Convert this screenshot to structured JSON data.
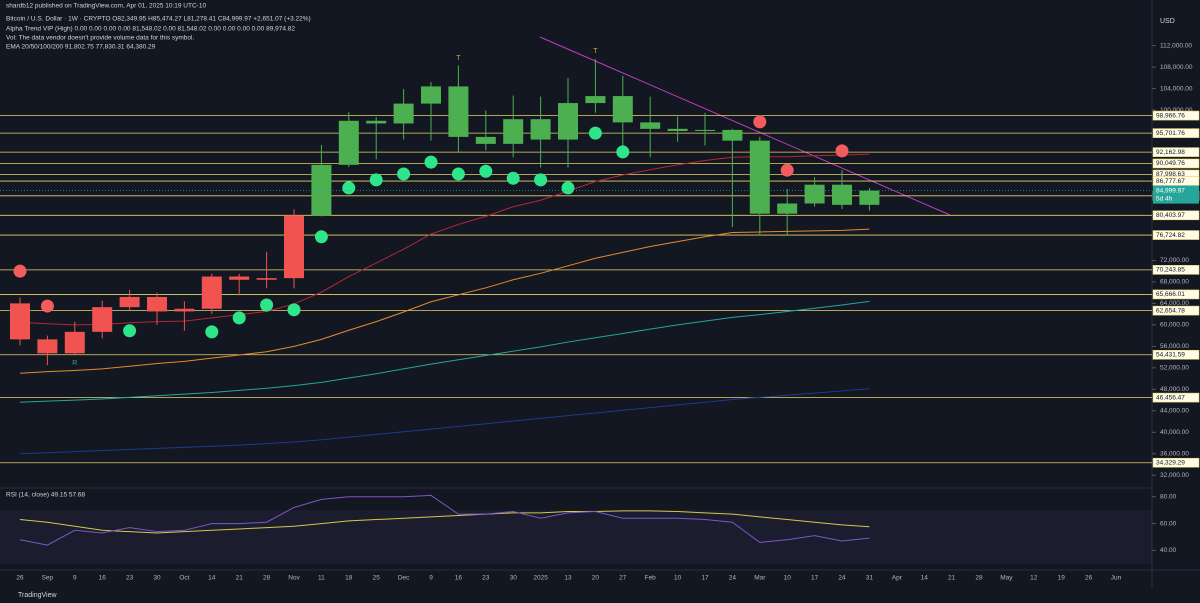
{
  "chart_data": {
    "type": "candlestick",
    "header": {
      "publisher": "shardb12 published on TradingView.com, Apr 01, 2025 10:19 UTC-10",
      "symbol": "Bitcoin / U.S. Dollar · 1W · CRYPTO   O82,349.95  H85,474.27  L81,278.41  C84,999.97  +2,651.07 (+3.22%)",
      "alpha_trend": "Alpha Trend VIP (High)  0.00  0.00  0.00  0.00  81,548.02  0.00  81,548.02  0.00  0.00  0.00  0.00  89,974.82",
      "volume": "Vol: The data vendor doesn't provide volume data for this symbol.",
      "ema": "EMA 20/50/100/200  91,802.75  77,830.31  64,380.29",
      "rsi": "RSI (14, close)  49.15  57.68"
    },
    "currency": "USD",
    "brand": "TradingView",
    "categories": [
      "26",
      "Sep",
      "9",
      "16",
      "23",
      "30",
      "Oct",
      "14",
      "21",
      "28",
      "Nov",
      "11",
      "18",
      "25",
      "Dec",
      "9",
      "16",
      "23",
      "30",
      "2025",
      "13",
      "20",
      "27",
      "Feb",
      "10",
      "17",
      "24",
      "Mar",
      "10",
      "17",
      "24",
      "31",
      "Apr",
      "14",
      "21",
      "28",
      "May",
      "12",
      "19",
      "26",
      "Jun"
    ],
    "open": [
      64000,
      57300,
      54700,
      58700,
      63300,
      65200,
      62500,
      63000,
      69000,
      68400,
      68700,
      80400,
      89800,
      98000,
      97500,
      101200,
      104400,
      95000,
      93700,
      98300,
      94500,
      101300,
      102600,
      97700,
      96500,
      96100,
      96300,
      94300,
      80700,
      82600,
      86100,
      82349.95,
      null,
      null,
      null,
      null,
      null,
      null,
      null,
      null,
      null
    ],
    "high": [
      65100,
      58000,
      60600,
      64500,
      66500,
      66000,
      64400,
      69500,
      69500,
      73600,
      81500,
      93500,
      99600,
      98700,
      103900,
      105200,
      108300,
      99900,
      102700,
      102500,
      106000,
      109500,
      106400,
      102500,
      98800,
      99500,
      96500,
      95000,
      85300,
      87500,
      88800,
      85474.27,
      null,
      null,
      null,
      null,
      null,
      null,
      null,
      null,
      null
    ],
    "low": [
      56200,
      52500,
      54500,
      57500,
      62700,
      60000,
      58900,
      62000,
      65500,
      66800,
      66800,
      80200,
      89400,
      90800,
      94500,
      94300,
      92200,
      92500,
      91200,
      89300,
      89300,
      99500,
      91200,
      91200,
      94100,
      93400,
      78200,
      76600,
      76600,
      82000,
      81600,
      81278.41,
      null,
      null,
      null,
      null,
      null,
      null,
      null,
      null,
      null
    ],
    "close": [
      57300,
      54700,
      58700,
      63300,
      65200,
      62500,
      63000,
      69000,
      68400,
      68700,
      80400,
      89800,
      98000,
      97500,
      101200,
      104400,
      95000,
      93700,
      98300,
      94500,
      101300,
      102600,
      97700,
      96500,
      96100,
      96300,
      94300,
      80700,
      82600,
      86100,
      82350,
      84999.97,
      null,
      null,
      null,
      null,
      null,
      null,
      null,
      null,
      null
    ],
    "colors": [
      "#f05350",
      "#f05350",
      "#f05350",
      "#f05350",
      "#f05350",
      "#f05350",
      "#f05350",
      "#f05350",
      "#f05350",
      "#f05350",
      "#f05350",
      "#4caf50",
      "#4caf50",
      "#4caf50",
      "#4caf50",
      "#4caf50",
      "#4caf50",
      "#4caf50",
      "#4caf50",
      "#4caf50",
      "#4caf50",
      "#4caf50",
      "#4caf50",
      "#4caf50",
      "#4caf50",
      "#4caf50",
      "#4caf50",
      "#4caf50",
      "#4caf50",
      "#4caf50",
      "#4caf50",
      "#4caf50",
      null,
      null,
      null,
      null,
      null,
      null,
      null,
      null,
      null
    ],
    "emas": [
      {
        "color": "#b22833",
        "values": [
          60500,
          60200,
          60000,
          60100,
          60400,
          60600,
          60700,
          61300,
          61900,
          62500,
          63900,
          66100,
          69000,
          71500,
          74100,
          76900,
          78700,
          80200,
          82000,
          83200,
          84900,
          86700,
          87900,
          88900,
          89800,
          90600,
          91200,
          91300,
          91300,
          91500,
          91600,
          91802.75,
          null,
          null,
          null,
          null,
          null,
          null,
          null,
          null,
          null
        ]
      },
      {
        "color": "#e68a2e",
        "values": [
          51000,
          51300,
          51500,
          51800,
          52300,
          52800,
          53200,
          53800,
          54400,
          55000,
          56000,
          57300,
          59000,
          60600,
          62400,
          64300,
          65600,
          66900,
          68400,
          69600,
          71000,
          72400,
          73500,
          74600,
          75500,
          76400,
          77200,
          77300,
          77400,
          77500,
          77600,
          77830.31,
          null,
          null,
          null,
          null,
          null,
          null,
          null,
          null,
          null
        ]
      },
      {
        "color": "#26a69a",
        "values": [
          45600,
          45800,
          46000,
          46200,
          46500,
          46800,
          47100,
          47400,
          47800,
          48200,
          48700,
          49300,
          50100,
          50900,
          51800,
          52700,
          53500,
          54300,
          55100,
          55900,
          56800,
          57600,
          58400,
          59200,
          60000,
          60700,
          61400,
          61900,
          62500,
          63100,
          63700,
          64380.29,
          null,
          null,
          null,
          null,
          null,
          null,
          null,
          null,
          null
        ]
      },
      {
        "color": "#1e3a8a",
        "values": [
          36000,
          36200,
          36400,
          36600,
          36800,
          37000,
          37200,
          37400,
          37600,
          37900,
          38200,
          38600,
          39100,
          39600,
          40100,
          40600,
          41100,
          41600,
          42100,
          42600,
          43100,
          43600,
          44100,
          44600,
          45100,
          45600,
          46100,
          46500,
          46900,
          47300,
          47700,
          48100,
          null,
          null,
          null,
          null,
          null,
          null,
          null,
          null,
          null
        ]
      }
    ],
    "signals": [
      {
        "color": "#2ee58a",
        "values": [
          null,
          null,
          null,
          null,
          58900,
          null,
          null,
          58700,
          61300,
          63700,
          62800,
          76400,
          85500,
          87000,
          88100,
          90300,
          88100,
          88600,
          87300,
          87000,
          85500,
          95700,
          92200,
          null,
          null,
          null,
          null,
          null,
          null,
          null,
          null,
          null,
          null,
          null,
          null,
          null,
          null,
          null,
          null,
          null,
          null
        ]
      },
      {
        "color": "#f25c5c",
        "values": [
          70000,
          63500,
          null,
          null,
          null,
          null,
          null,
          null,
          null,
          null,
          null,
          null,
          null,
          null,
          null,
          null,
          null,
          null,
          null,
          null,
          null,
          null,
          null,
          null,
          null,
          null,
          null,
          97800,
          88800,
          null,
          92400,
          null,
          null,
          null,
          null,
          null,
          null,
          null,
          null,
          null,
          null
        ]
      }
    ],
    "annotations": [
      "T",
      "T",
      "R"
    ],
    "ylim": [
      30000,
      119000
    ],
    "yticks": [
      {
        "value": 112000,
        "label": "112,000.00"
      },
      {
        "value": 108000,
        "label": "108,000.00"
      },
      {
        "value": 104000,
        "label": "104,000.00"
      },
      {
        "value": 100000,
        "label": "100,000.00"
      },
      {
        "value": 72000,
        "label": "72,000.00"
      },
      {
        "value": 68000,
        "label": "68,000.00"
      },
      {
        "value": 64000,
        "label": "64,000.00"
      },
      {
        "value": 60000,
        "label": "60,000.00"
      },
      {
        "value": 56000,
        "label": "56,000.00"
      },
      {
        "value": 52000,
        "label": "52,000.00"
      },
      {
        "value": 48000,
        "label": "48,000.00"
      },
      {
        "value": 44000,
        "label": "44,000.00"
      },
      {
        "value": 40000,
        "label": "40,000.00"
      },
      {
        "value": 36000,
        "label": "36,000.00"
      },
      {
        "value": 32000,
        "label": "32,000.00"
      }
    ],
    "levels": [
      {
        "value": 98966.76,
        "label": "98,966.76"
      },
      {
        "value": 95701.76,
        "label": "95,701.76"
      },
      {
        "value": 92162.98,
        "label": "92,162.98"
      },
      {
        "value": 90049.76,
        "label": "90,049.76"
      },
      {
        "value": 87998.63,
        "label": "87,998.63"
      },
      {
        "value": 86777.67,
        "label": "86,777.67"
      },
      {
        "value": 84028.67,
        "label": "84,028.67"
      },
      {
        "value": 80403.97,
        "label": "80,403.97"
      },
      {
        "value": 76724.82,
        "label": "76,724.82"
      },
      {
        "value": 70243.85,
        "label": "70,243.85"
      },
      {
        "value": 65666.01,
        "label": "65,666.01"
      },
      {
        "value": 62654.78,
        "label": "62,654.78"
      },
      {
        "value": 54431.59,
        "label": "54,431.59"
      },
      {
        "value": 46456.47,
        "label": "46,456.47"
      },
      {
        "value": 34329.29,
        "label": "34,329.29"
      }
    ],
    "level_color": "#e6d36a",
    "last_price": {
      "value": 84999.97,
      "label": "84,999.97",
      "countdown": "5d 4h",
      "color": "#26a69a"
    },
    "rsi": {
      "values": [
        48,
        44,
        55,
        53,
        57,
        54,
        55,
        60,
        60,
        61,
        72,
        78,
        80,
        80,
        80,
        81,
        67,
        67,
        69,
        64,
        68,
        69,
        64,
        64,
        64,
        63,
        61,
        46,
        48,
        51,
        47,
        49.15,
        null,
        null,
        null,
        null,
        null,
        null,
        null,
        null,
        null
      ],
      "ma": [
        63,
        61,
        58,
        55,
        54,
        53,
        54,
        55,
        56,
        57,
        58,
        60,
        62,
        63,
        64,
        65,
        66,
        67,
        68,
        68,
        69,
        69,
        69.5,
        69.5,
        69,
        68,
        67,
        65,
        63,
        61,
        59,
        57.68,
        null,
        null,
        null,
        null,
        null,
        null,
        null,
        null,
        null
      ],
      "color": "#7e57c2",
      "ma_color": "#d4c84a",
      "ylim": [
        18,
        85
      ],
      "yticks": [
        {
          "value": 80,
          "label": "80.00"
        },
        {
          "value": 60,
          "label": "60.00"
        },
        {
          "value": 40,
          "label": "40.00"
        }
      ]
    }
  }
}
